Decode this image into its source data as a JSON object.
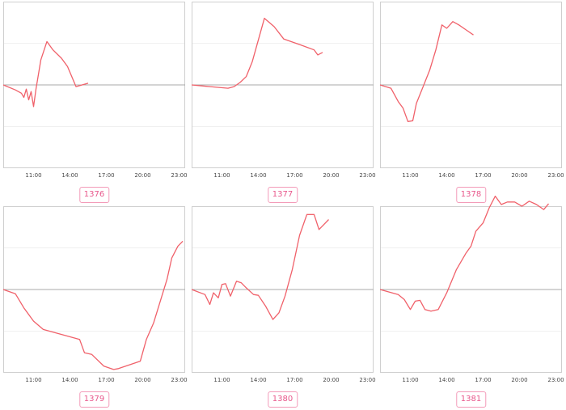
{
  "colors": {
    "series": "#f0616a",
    "baseline": "#aaaaaa",
    "frame": "#cfcfcf",
    "grid": "#f0f0f0",
    "badge": "#e8588c"
  },
  "chart_data": [
    {
      "type": "line",
      "badge": "1376",
      "x_ticks": [
        "11:00",
        "14:00",
        "17:00",
        "20:00",
        "23:00"
      ],
      "xlim": [
        8.5,
        23.5
      ],
      "ylim": [
        -1,
        1
      ],
      "baseline": 0,
      "series": [
        {
          "x": [
            8.5,
            9.5,
            10.0,
            10.2,
            10.4,
            10.6,
            10.8,
            11.0,
            11.2,
            11.6,
            12.1,
            12.6,
            13.3,
            13.8,
            14.5,
            15.5
          ],
          "y": [
            0,
            -0.06,
            -0.1,
            -0.15,
            -0.05,
            -0.18,
            -0.08,
            -0.26,
            -0.05,
            0.3,
            0.52,
            0.42,
            0.32,
            0.22,
            -0.02,
            0.02
          ]
        }
      ]
    },
    {
      "type": "line",
      "badge": "1377",
      "x_ticks": [
        "11:00",
        "14:00",
        "17:00",
        "20:00",
        "23:00"
      ],
      "xlim": [
        8.5,
        23.5
      ],
      "ylim": [
        -1,
        1
      ],
      "baseline": 0,
      "series": [
        {
          "x": [
            8.5,
            10.0,
            11.5,
            12.0,
            12.5,
            13.0,
            13.5,
            14.0,
            14.5,
            15.3,
            16.1,
            17.5,
            18.6,
            18.9,
            19.3
          ],
          "y": [
            0,
            -0.02,
            -0.04,
            -0.02,
            0.03,
            0.1,
            0.28,
            0.54,
            0.8,
            0.7,
            0.55,
            0.48,
            0.42,
            0.36,
            0.39
          ]
        }
      ]
    },
    {
      "type": "line",
      "badge": "1378",
      "x_ticks": [
        "11:00",
        "14:00",
        "17:00",
        "20:00",
        "23:00"
      ],
      "xlim": [
        8.5,
        23.5
      ],
      "ylim": [
        -1,
        1
      ],
      "baseline": 0,
      "series": [
        {
          "x": [
            8.5,
            9.4,
            10.0,
            10.4,
            10.8,
            11.2,
            11.5,
            12.0,
            12.6,
            13.1,
            13.6,
            14.0,
            14.5,
            15.0,
            15.6,
            16.2
          ],
          "y": [
            0,
            -0.04,
            -0.2,
            -0.28,
            -0.44,
            -0.43,
            -0.22,
            -0.04,
            0.18,
            0.42,
            0.72,
            0.68,
            0.76,
            0.72,
            0.66,
            0.6
          ]
        }
      ]
    },
    {
      "type": "line",
      "badge": "1379",
      "x_ticks": [
        "11:00",
        "14:00",
        "17:00",
        "20:00",
        "23:00"
      ],
      "xlim": [
        8.5,
        23.5
      ],
      "ylim": [
        -1,
        1
      ],
      "baseline": 0,
      "series": [
        {
          "x": [
            8.5,
            9.5,
            10.2,
            11.0,
            11.8,
            14.8,
            15.2,
            15.8,
            16.8,
            17.6,
            18.0,
            19.8,
            20.3,
            20.9,
            22.0,
            22.4,
            22.9,
            23.3
          ],
          "y": [
            0,
            -0.05,
            -0.22,
            -0.38,
            -0.48,
            -0.6,
            -0.76,
            -0.78,
            -0.92,
            -0.96,
            -0.95,
            -0.86,
            -0.6,
            -0.4,
            0.12,
            0.38,
            0.52,
            0.58
          ]
        }
      ]
    },
    {
      "type": "line",
      "badge": "1380",
      "x_ticks": [
        "11:00",
        "14:00",
        "17:00",
        "20:00",
        "23:00"
      ],
      "xlim": [
        8.5,
        23.5
      ],
      "ylim": [
        -1,
        1
      ],
      "baseline": 0,
      "series": [
        {
          "x": [
            8.5,
            9.6,
            10.0,
            10.3,
            10.7,
            11.0,
            11.3,
            11.7,
            12.2,
            12.6,
            13.0,
            13.6,
            14.0,
            14.6,
            15.2,
            15.7,
            16.2,
            16.8,
            17.4,
            18.0,
            18.6,
            19.0,
            19.4,
            19.8
          ],
          "y": [
            0,
            -0.06,
            -0.18,
            -0.04,
            -0.1,
            0.06,
            0.07,
            -0.08,
            0.1,
            0.08,
            0.02,
            -0.06,
            -0.07,
            -0.2,
            -0.36,
            -0.28,
            -0.08,
            0.24,
            0.65,
            0.9,
            0.9,
            0.72,
            0.78,
            0.84
          ]
        }
      ]
    },
    {
      "type": "line",
      "badge": "1381",
      "x_ticks": [
        "11:00",
        "14:00",
        "17:00",
        "20:00",
        "23:00"
      ],
      "xlim": [
        8.5,
        23.5
      ],
      "ylim": [
        -1,
        1
      ],
      "baseline": 0,
      "series": [
        {
          "x": [
            8.5,
            10.0,
            10.5,
            11.0,
            11.4,
            11.8,
            12.2,
            12.7,
            13.3,
            14.0,
            14.8,
            15.6,
            16.0,
            16.4,
            17.0,
            17.5,
            18.0,
            18.5,
            19.0,
            19.6,
            20.2,
            20.8,
            21.4,
            22.0,
            22.4
          ],
          "y": [
            0,
            -0.06,
            -0.12,
            -0.24,
            -0.14,
            -0.13,
            -0.24,
            -0.26,
            -0.24,
            -0.04,
            0.24,
            0.44,
            0.52,
            0.7,
            0.8,
            0.98,
            1.12,
            1.02,
            1.05,
            1.05,
            1.0,
            1.06,
            1.02,
            0.96,
            1.03
          ]
        }
      ]
    }
  ]
}
